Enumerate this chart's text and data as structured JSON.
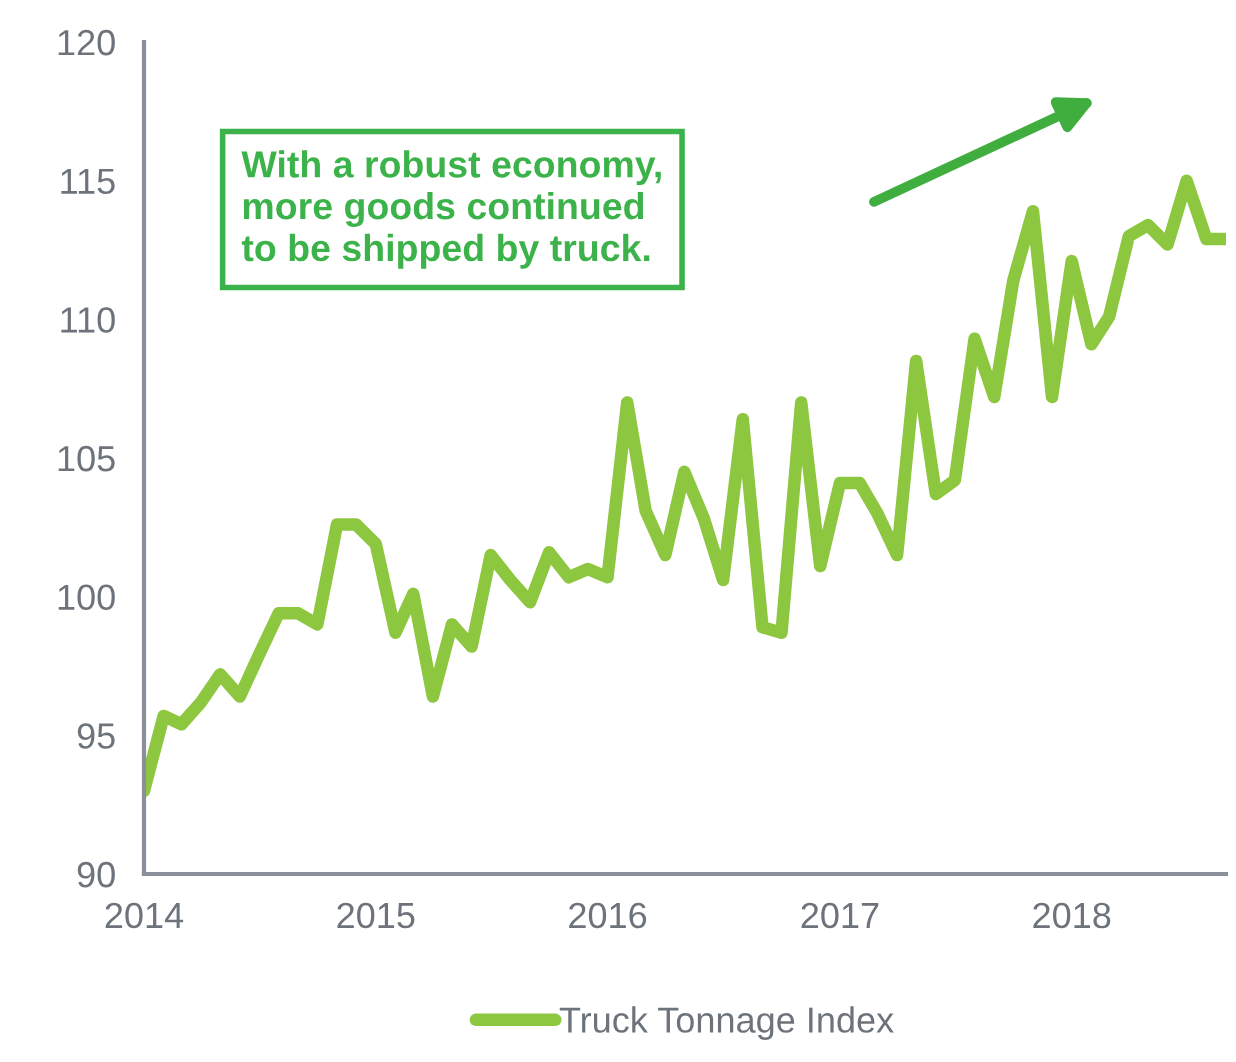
{
  "chart_data": {
    "type": "line",
    "x": [
      "2014-01",
      "2014-02",
      "2014-03",
      "2014-04",
      "2014-05",
      "2014-06",
      "2014-07",
      "2014-08",
      "2014-09",
      "2014-10",
      "2014-11",
      "2014-12",
      "2015-01",
      "2015-02",
      "2015-03",
      "2015-04",
      "2015-05",
      "2015-06",
      "2015-07",
      "2015-08",
      "2015-09",
      "2015-10",
      "2015-11",
      "2015-12",
      "2016-01",
      "2016-02",
      "2016-03",
      "2016-04",
      "2016-05",
      "2016-06",
      "2016-07",
      "2016-08",
      "2016-09",
      "2016-10",
      "2016-11",
      "2016-12",
      "2017-01",
      "2017-02",
      "2017-03",
      "2017-04",
      "2017-05",
      "2017-06",
      "2017-07",
      "2017-08",
      "2017-09",
      "2017-10",
      "2017-11",
      "2017-12",
      "2018-01",
      "2018-02",
      "2018-03",
      "2018-04",
      "2018-05",
      "2018-06",
      "2018-07",
      "2018-08",
      "2018-09"
    ],
    "series": [
      {
        "name": "Truck Tonnage Index",
        "color": "#8dc63f",
        "values": [
          93.0,
          95.7,
          95.4,
          96.2,
          97.2,
          96.4,
          97.9,
          99.4,
          99.4,
          99.0,
          102.6,
          102.6,
          101.9,
          98.7,
          100.1,
          96.4,
          99.0,
          98.2,
          101.5,
          100.6,
          99.8,
          101.6,
          100.7,
          101.0,
          100.7,
          107.0,
          103.1,
          101.5,
          104.5,
          102.8,
          100.6,
          106.4,
          98.9,
          98.7,
          107.0,
          101.1,
          104.1,
          104.1,
          103.0,
          101.5,
          108.5,
          103.7,
          104.2,
          109.3,
          107.2,
          111.4,
          113.9,
          107.2,
          112.1,
          109.1,
          110.1,
          113.0,
          113.4,
          112.7,
          115.0,
          112.9,
          112.9
        ]
      }
    ],
    "xlim": [
      "2014-01",
      "2018-09"
    ],
    "xticks": [
      {
        "value": "2014-01",
        "label": "2014"
      },
      {
        "value": "2015-01",
        "label": "2015"
      },
      {
        "value": "2016-01",
        "label": "2016"
      },
      {
        "value": "2017-01",
        "label": "2017"
      },
      {
        "value": "2018-01",
        "label": "2018"
      }
    ],
    "ylim": [
      90,
      120
    ],
    "yticks": [
      90,
      95,
      100,
      105,
      110,
      115,
      120
    ],
    "annotations": [
      "With a robust economy,\nmore goods continued\nto be shipped by truck."
    ],
    "grid": false,
    "legend": "bottom",
    "marker": "none",
    "line_style": "solid"
  }
}
